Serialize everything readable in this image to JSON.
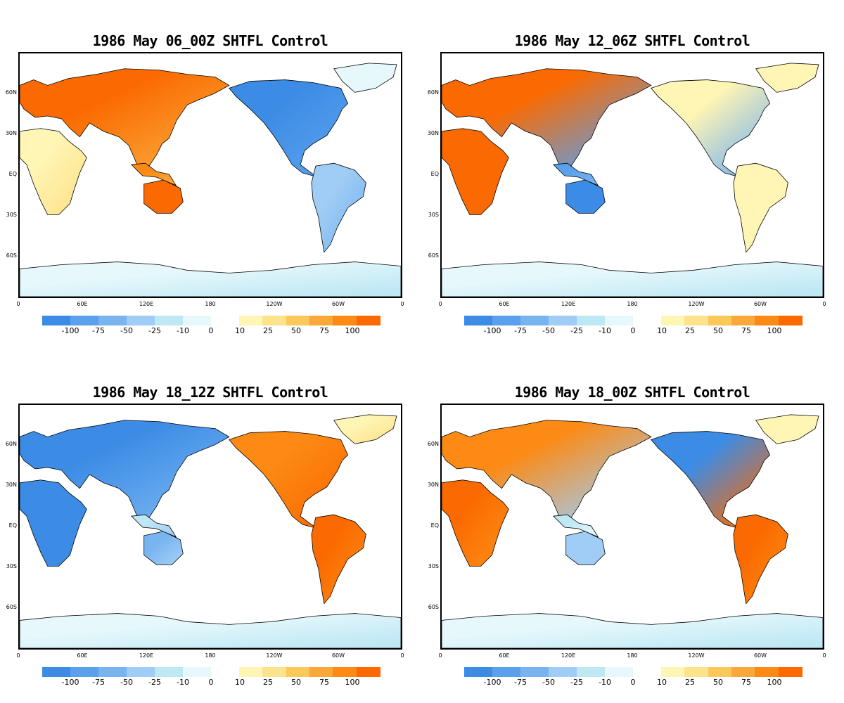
{
  "panels": [
    {
      "title": "1986 May 06_00Z SHTFL Control",
      "pattern": "p1"
    },
    {
      "title": "1986 May 12_06Z SHTFL Control",
      "pattern": "p2"
    },
    {
      "title": "1986 May 18_12Z SHTFL Control",
      "pattern": "p3"
    },
    {
      "title": "1986 May 18_00Z SHTFL Control",
      "pattern": "p4"
    }
  ],
  "lat_labels": [
    "60N",
    "30N",
    "EQ",
    "30S",
    "60S"
  ],
  "lon_labels": [
    "0",
    "60E",
    "120E",
    "180",
    "120W",
    "60W",
    "0"
  ],
  "colorbar": {
    "negative_colors": [
      "#3c8ce6",
      "#5aa0ec",
      "#78b4f0",
      "#a0cdf5",
      "#bfe8f5",
      "#e6f8fb"
    ],
    "positive_colors": [
      "#fff5b4",
      "#fde38c",
      "#fcc85a",
      "#fba83a",
      "#fc8a14",
      "#fb6a00"
    ],
    "negative_ticks": [
      "-100",
      "-75",
      "-50",
      "-25",
      "-10",
      "0"
    ],
    "positive_ticks": [
      "10",
      "25",
      "50",
      "75",
      "100"
    ]
  }
}
